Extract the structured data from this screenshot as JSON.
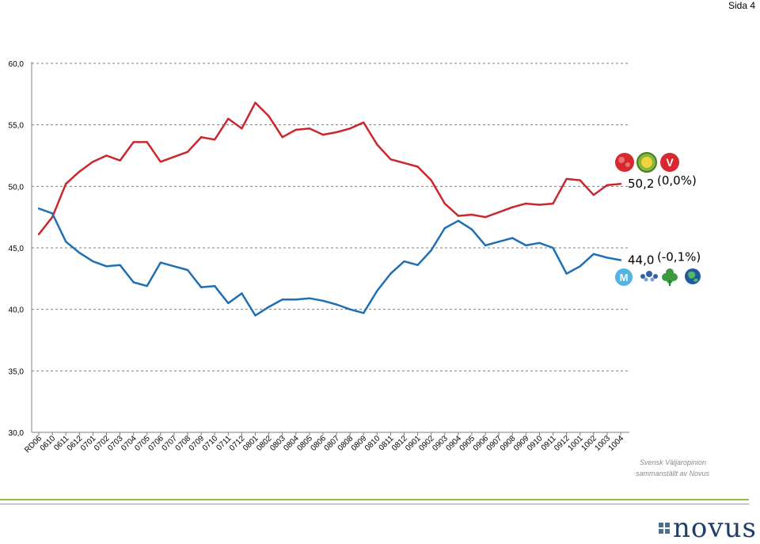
{
  "page_label": "Sida 4",
  "chart_data": {
    "type": "line",
    "title": "",
    "xlabel": "",
    "ylabel": "",
    "ylim": [
      30,
      60
    ],
    "yticks": [
      "30,0",
      "35,0",
      "40,0",
      "45,0",
      "50,0",
      "55,0",
      "60,0"
    ],
    "ytick_values": [
      30,
      35,
      40,
      45,
      50,
      55,
      60
    ],
    "grid": "horizontal dashed",
    "categories": [
      "RD06",
      "0610",
      "0611",
      "0612",
      "0701",
      "0702",
      "0703",
      "0704",
      "0705",
      "0706",
      "0707",
      "0708",
      "0709",
      "0710",
      "0711",
      "0712",
      "0801",
      "0802",
      "0803",
      "0804",
      "0805",
      "0806",
      "0807",
      "0808",
      "0809",
      "0810",
      "0811",
      "0812",
      "0901",
      "0902",
      "0903",
      "0904",
      "0905",
      "0906",
      "0907",
      "0908",
      "0909",
      "0910",
      "0911",
      "0912",
      "1001",
      "1002",
      "1003",
      "1004"
    ],
    "series": [
      {
        "color": "#c8272d",
        "values": [
          46.1,
          47.5,
          50.2,
          51.2,
          52.0,
          52.5,
          52.1,
          53.6,
          53.6,
          52.0,
          52.4,
          52.8,
          54.0,
          53.8,
          55.5,
          54.7,
          56.8,
          55.7,
          54.0,
          54.6,
          54.7,
          54.2,
          54.4,
          54.7,
          55.2,
          53.4,
          52.2,
          51.9,
          51.6,
          50.5,
          48.6,
          47.6,
          47.7,
          47.5,
          47.9,
          48.3,
          48.6,
          48.5,
          48.6,
          50.6,
          50.5,
          49.3,
          50.1,
          50.2
        ]
      },
      {
        "color": "#1f6fb4",
        "values": [
          48.2,
          47.8,
          45.5,
          44.6,
          43.9,
          43.5,
          43.6,
          42.2,
          41.9,
          43.8,
          43.5,
          43.2,
          41.8,
          41.9,
          40.5,
          41.3,
          39.5,
          40.2,
          40.8,
          40.8,
          40.9,
          40.7,
          40.4,
          40.0,
          39.7,
          41.5,
          42.9,
          43.9,
          43.6,
          44.8,
          46.6,
          47.2,
          46.5,
          45.2,
          45.5,
          45.8,
          45.2,
          45.4,
          45.0,
          42.9,
          43.5,
          44.5,
          44.2,
          44.0
        ]
      }
    ],
    "annotations": [
      {
        "label": "50,2",
        "change": "(0,0%)",
        "series": 0
      },
      {
        "label": "44,0",
        "change": "(-0,1%)",
        "series": 1
      }
    ]
  },
  "party_logos": {
    "red": [
      {
        "name": "rose-logo",
        "color": "#d7282f"
      },
      {
        "name": "green-party-logo",
        "color": "#83b83d"
      },
      {
        "name": "v-logo",
        "color": "#d7282f"
      }
    ],
    "blue": [
      {
        "name": "m-logo",
        "color": "#4fb4e8"
      },
      {
        "name": "flower-logo",
        "color": "#2f62a8"
      },
      {
        "name": "clover-logo",
        "color": "#3a9a3c"
      },
      {
        "name": "globe-logo",
        "color": "#1f5aa0"
      }
    ]
  },
  "credit": {
    "line1": "Svensk Väljaropinion",
    "line2": "sammanställt av Novus"
  },
  "brand": {
    "name": "novus"
  }
}
